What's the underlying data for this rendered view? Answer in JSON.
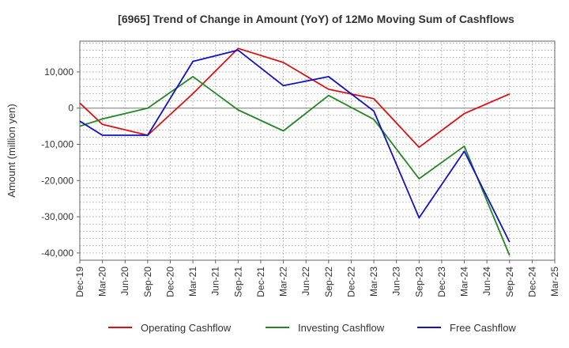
{
  "chart_data": {
    "type": "line",
    "title": "[6965]  Trend of Change in Amount (YoY) of 12Mo Moving Sum of Cashflows",
    "xlabel": "",
    "ylabel": "Amount (million yen)",
    "ylim": [
      -42000,
      18500
    ],
    "y_ticks": [
      10000,
      0,
      -10000,
      -20000,
      -30000,
      -40000
    ],
    "y_tick_labels": [
      "10,000",
      "0",
      "-10,000",
      "-20,000",
      "-30,000",
      "-40,000"
    ],
    "categories": [
      "Dec-19",
      "Mar-20",
      "Jun-20",
      "Sep-20",
      "Dec-20",
      "Mar-21",
      "Jun-21",
      "Sep-21",
      "Dec-21",
      "Mar-22",
      "Jun-22",
      "Sep-22",
      "Dec-22",
      "Mar-23",
      "Jun-23",
      "Sep-23",
      "Dec-23",
      "Mar-24",
      "Jun-24",
      "Sep-24",
      "Dec-24",
      "Mar-25"
    ],
    "grid": true,
    "legend_position": "bottom",
    "series": [
      {
        "name": "Operating Cashflow",
        "color": "#dd1111",
        "values": [
          1400,
          -4500,
          null,
          -7500,
          null,
          4000,
          null,
          16500,
          null,
          12600,
          null,
          5200,
          null,
          2600,
          null,
          -10800,
          null,
          -1500,
          null,
          3900,
          null,
          null
        ]
      },
      {
        "name": "Investing Cashflow",
        "color": "#228822",
        "values": [
          -5000,
          -3000,
          null,
          0,
          null,
          8700,
          null,
          -500,
          null,
          -6300,
          null,
          3500,
          null,
          -3100,
          null,
          -19500,
          null,
          -10500,
          null,
          -40700,
          null,
          null
        ]
      },
      {
        "name": "Free Cashflow",
        "color": "#1111cc",
        "values": [
          -3600,
          -7500,
          null,
          -7500,
          null,
          12900,
          null,
          16000,
          null,
          6200,
          null,
          8700,
          null,
          -800,
          null,
          -30300,
          null,
          -11900,
          null,
          -37000,
          null,
          null
        ]
      }
    ]
  }
}
